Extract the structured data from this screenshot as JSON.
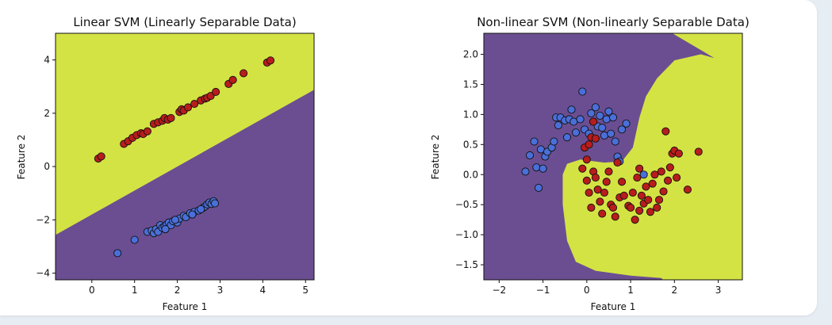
{
  "chart_data": [
    {
      "type": "scatter",
      "title": "Linear SVM (Linearly Separable Data)",
      "xlabel": "Feature 1",
      "ylabel": "Feature 2",
      "xlim": [
        -0.85,
        5.2
      ],
      "ylim": [
        -4.25,
        5.0
      ],
      "xticks": [
        0,
        1,
        2,
        3,
        4,
        5
      ],
      "yticks": [
        -4,
        -2,
        0,
        2,
        4
      ],
      "grid": false,
      "legend": "none",
      "decision_boundary": {
        "kind": "linear",
        "slope": 0.9,
        "intercept": -1.8
      },
      "region_colors": {
        "above": "#d4e344",
        "below": "#6b4e91"
      },
      "series": [
        {
          "color": "#b81c1c",
          "points": [
            [
              0.15,
              0.3
            ],
            [
              0.22,
              0.38
            ],
            [
              0.75,
              0.85
            ],
            [
              0.85,
              0.95
            ],
            [
              0.95,
              1.08
            ],
            [
              1.05,
              1.18
            ],
            [
              1.15,
              1.25
            ],
            [
              1.2,
              1.22
            ],
            [
              1.3,
              1.32
            ],
            [
              1.45,
              1.6
            ],
            [
              1.55,
              1.66
            ],
            [
              1.65,
              1.72
            ],
            [
              1.7,
              1.82
            ],
            [
              1.78,
              1.76
            ],
            [
              1.85,
              1.82
            ],
            [
              2.05,
              2.05
            ],
            [
              2.1,
              2.15
            ],
            [
              2.15,
              2.1
            ],
            [
              2.25,
              2.22
            ],
            [
              2.4,
              2.35
            ],
            [
              2.55,
              2.48
            ],
            [
              2.65,
              2.55
            ],
            [
              2.7,
              2.58
            ],
            [
              2.78,
              2.65
            ],
            [
              2.9,
              2.8
            ],
            [
              3.2,
              3.1
            ],
            [
              3.3,
              3.25
            ],
            [
              3.55,
              3.5
            ],
            [
              4.1,
              3.9
            ],
            [
              4.18,
              3.98
            ]
          ]
        },
        {
          "color": "#4a6fd8",
          "points": [
            [
              0.6,
              -3.25
            ],
            [
              1.0,
              -2.75
            ],
            [
              1.3,
              -2.45
            ],
            [
              1.4,
              -2.4
            ],
            [
              1.45,
              -2.5
            ],
            [
              1.5,
              -2.35
            ],
            [
              1.55,
              -2.45
            ],
            [
              1.6,
              -2.2
            ],
            [
              1.65,
              -2.3
            ],
            [
              1.7,
              -2.25
            ],
            [
              1.75,
              -2.18
            ],
            [
              1.8,
              -2.1
            ],
            [
              1.85,
              -2.2
            ],
            [
              1.9,
              -2.05
            ],
            [
              2.0,
              -2.1
            ],
            [
              2.05,
              -1.95
            ],
            [
              2.15,
              -1.85
            ],
            [
              2.2,
              -1.9
            ],
            [
              2.3,
              -1.75
            ],
            [
              2.4,
              -1.7
            ],
            [
              2.5,
              -1.65
            ],
            [
              2.6,
              -1.55
            ],
            [
              2.65,
              -1.5
            ],
            [
              2.7,
              -1.42
            ],
            [
              2.75,
              -1.35
            ],
            [
              2.8,
              -1.4
            ],
            [
              2.85,
              -1.3
            ],
            [
              2.88,
              -1.38
            ],
            [
              2.55,
              -1.6
            ],
            [
              2.35,
              -1.8
            ],
            [
              1.95,
              -2.0
            ],
            [
              1.72,
              -2.35
            ]
          ]
        }
      ]
    },
    {
      "type": "scatter",
      "title": "Non-linear SVM (Non-linearly Separable Data)",
      "xlabel": "Feature 1",
      "ylabel": "Feature 2",
      "xlim": [
        -2.35,
        3.55
      ],
      "ylim": [
        -1.75,
        2.35
      ],
      "xticks": [
        -2,
        -1,
        0,
        1,
        2,
        3
      ],
      "yticks": [
        -1.5,
        -1.0,
        -0.5,
        0.0,
        0.5,
        1.0,
        1.5,
        2.0
      ],
      "grid": false,
      "legend": "none",
      "region_colors": {
        "outside": "#6b4e91",
        "inside": "#d4e344"
      },
      "series": [
        {
          "color": "#4a6fd8",
          "points": [
            [
              -1.4,
              0.05
            ],
            [
              -1.3,
              0.32
            ],
            [
              -1.2,
              0.55
            ],
            [
              -1.15,
              0.12
            ],
            [
              -1.1,
              -0.22
            ],
            [
              -1.05,
              0.42
            ],
            [
              -1.0,
              0.1
            ],
            [
              -0.95,
              0.3
            ],
            [
              -0.9,
              0.38
            ],
            [
              -0.8,
              0.45
            ],
            [
              -0.75,
              0.55
            ],
            [
              -0.7,
              0.95
            ],
            [
              -0.65,
              0.82
            ],
            [
              -0.6,
              0.95
            ],
            [
              -0.5,
              0.9
            ],
            [
              -0.45,
              0.62
            ],
            [
              -0.4,
              0.92
            ],
            [
              -0.35,
              1.08
            ],
            [
              -0.3,
              0.88
            ],
            [
              -0.25,
              0.7
            ],
            [
              -0.15,
              0.92
            ],
            [
              -0.1,
              1.38
            ],
            [
              -0.05,
              0.75
            ],
            [
              0.05,
              0.68
            ],
            [
              0.1,
              1.02
            ],
            [
              0.15,
              0.88
            ],
            [
              0.2,
              1.12
            ],
            [
              0.25,
              0.8
            ],
            [
              0.3,
              0.98
            ],
            [
              0.35,
              0.78
            ],
            [
              0.4,
              0.65
            ],
            [
              0.45,
              0.92
            ],
            [
              0.5,
              1.05
            ],
            [
              0.55,
              0.68
            ],
            [
              0.6,
              0.95
            ],
            [
              0.65,
              0.55
            ],
            [
              0.7,
              0.3
            ],
            [
              0.75,
              0.22
            ],
            [
              0.8,
              0.75
            ],
            [
              0.9,
              0.85
            ],
            [
              1.3,
              0.0
            ]
          ]
        },
        {
          "color": "#b81c1c",
          "points": [
            [
              -0.05,
              0.45
            ],
            [
              0.0,
              0.25
            ],
            [
              0.05,
              0.5
            ],
            [
              0.1,
              0.62
            ],
            [
              0.15,
              0.88
            ],
            [
              0.2,
              0.6
            ],
            [
              -0.1,
              0.1
            ],
            [
              0.0,
              -0.1
            ],
            [
              0.05,
              -0.3
            ],
            [
              0.1,
              -0.55
            ],
            [
              0.15,
              0.05
            ],
            [
              0.2,
              -0.05
            ],
            [
              0.25,
              -0.25
            ],
            [
              0.3,
              -0.45
            ],
            [
              0.35,
              -0.65
            ],
            [
              0.4,
              -0.3
            ],
            [
              0.45,
              -0.12
            ],
            [
              0.5,
              0.05
            ],
            [
              0.55,
              -0.5
            ],
            [
              0.6,
              -0.55
            ],
            [
              0.65,
              -0.7
            ],
            [
              0.7,
              0.2
            ],
            [
              0.75,
              -0.38
            ],
            [
              0.8,
              -0.12
            ],
            [
              0.85,
              -0.35
            ],
            [
              0.95,
              -0.52
            ],
            [
              1.0,
              -0.55
            ],
            [
              1.05,
              -0.3
            ],
            [
              1.1,
              -0.75
            ],
            [
              1.15,
              -0.05
            ],
            [
              1.2,
              0.1
            ],
            [
              1.25,
              -0.35
            ],
            [
              1.3,
              -0.48
            ],
            [
              1.35,
              -0.2
            ],
            [
              1.4,
              -0.42
            ],
            [
              1.45,
              -0.62
            ],
            [
              1.5,
              -0.15
            ],
            [
              1.55,
              0.0
            ],
            [
              1.6,
              -0.55
            ],
            [
              1.65,
              -0.42
            ],
            [
              1.7,
              0.05
            ],
            [
              1.75,
              -0.28
            ],
            [
              1.8,
              0.72
            ],
            [
              1.85,
              -0.1
            ],
            [
              1.9,
              0.12
            ],
            [
              1.95,
              0.35
            ],
            [
              2.0,
              0.4
            ],
            [
              2.05,
              -0.05
            ],
            [
              2.1,
              0.35
            ],
            [
              2.3,
              -0.25
            ],
            [
              2.55,
              0.38
            ],
            [
              1.2,
              -0.6
            ]
          ]
        }
      ]
    }
  ]
}
